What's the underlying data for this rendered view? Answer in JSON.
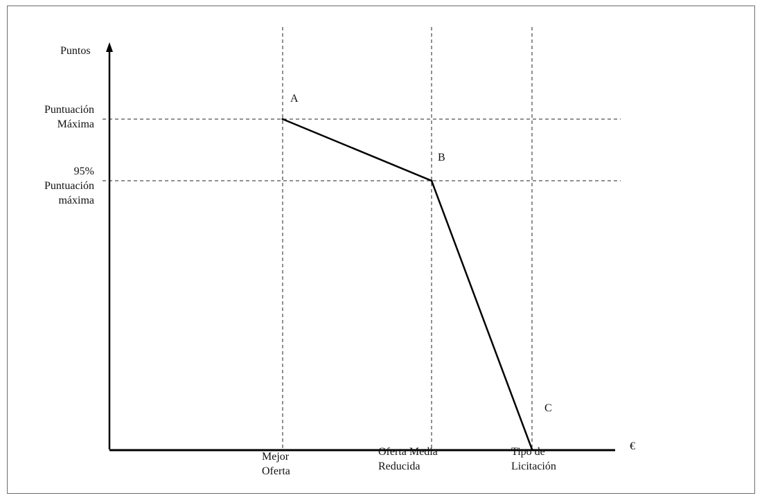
{
  "chart_data": {
    "type": "line",
    "ylabel": "Puntos",
    "xlabel": "€",
    "x_ticks": [
      {
        "line1": "Mejor",
        "line2": "Oferta"
      },
      {
        "line1": "Oferta Media",
        "line2": "Reducida"
      },
      {
        "line1": "Tipo de",
        "line2": "Licitación"
      }
    ],
    "y_ticks": [
      {
        "line1": "Puntuación",
        "line2": "Máxima",
        "value": 100
      },
      {
        "line0": "95%",
        "line1": "Puntuación",
        "line2": "máxima",
        "value": 95
      }
    ],
    "points": [
      {
        "label": "A",
        "x": "Mejor Oferta",
        "y": 100
      },
      {
        "label": "B",
        "x": "Oferta Media Reducida",
        "y": 95
      },
      {
        "label": "C",
        "x": "Tipo de Licitación",
        "y": 0
      }
    ],
    "grid": "dashed reference lines",
    "legend": "none"
  }
}
